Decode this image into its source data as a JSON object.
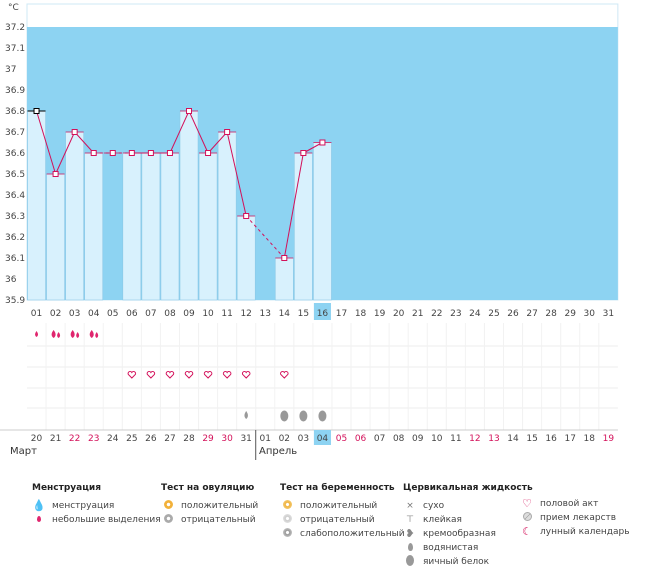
{
  "chart": {
    "unit": "°C",
    "y_ticks": [
      "37.2",
      "37.1",
      "37",
      "36.9",
      "36.8",
      "36.7",
      "36.6",
      "36.5",
      "36.4",
      "36.3",
      "36.2",
      "36.1",
      "36",
      "35.9"
    ],
    "cycle_days": [
      "01",
      "02",
      "03",
      "04",
      "05",
      "06",
      "07",
      "08",
      "09",
      "10",
      "11",
      "12",
      "13",
      "14",
      "15",
      "16",
      "17",
      "18",
      "19",
      "20",
      "21",
      "22",
      "23",
      "24",
      "25",
      "26",
      "27",
      "28",
      "29",
      "30",
      "31"
    ],
    "current_day": "16",
    "dates": [
      "20",
      "21",
      "22",
      "23",
      "24",
      "25",
      "26",
      "27",
      "28",
      "29",
      "30",
      "31",
      "01",
      "02",
      "03",
      "04",
      "05",
      "06",
      "07",
      "08",
      "09",
      "10",
      "11",
      "12",
      "13",
      "14",
      "15",
      "16",
      "17",
      "18",
      "19"
    ],
    "weekend_indices": [
      2,
      3,
      9,
      10,
      16,
      17,
      23,
      24,
      30
    ],
    "today_date_index": 15,
    "month_labels": [
      "Март",
      "Апрель"
    ],
    "colors": {
      "background": "#8dd3f2",
      "bar": "#d8f1fd",
      "bar_border": "#8cc8e6",
      "line": "#d3115a",
      "weekend": "#d3115a",
      "today_bg": "#8dd3f2"
    }
  },
  "chart_data": {
    "type": "line",
    "xlabel": "",
    "ylabel": "°C",
    "ylim": [
      35.9,
      37.2
    ],
    "x": [
      1,
      2,
      3,
      4,
      5,
      6,
      7,
      8,
      9,
      10,
      11,
      12,
      13,
      14,
      15,
      16
    ],
    "values": [
      36.8,
      36.5,
      36.7,
      36.6,
      36.6,
      36.6,
      36.6,
      36.6,
      36.8,
      36.6,
      36.7,
      36.3,
      null,
      36.1,
      36.6,
      36.65
    ],
    "bars_present": [
      1,
      2,
      3,
      4,
      6,
      7,
      8,
      9,
      10,
      11,
      12,
      14,
      15,
      16
    ]
  },
  "rows": {
    "menstruation": [
      {
        "day": 1,
        "type": "small"
      },
      {
        "day": 2,
        "type": "full"
      },
      {
        "day": 3,
        "type": "full"
      },
      {
        "day": 4,
        "type": "full"
      }
    ],
    "intercourse_days": [
      6,
      7,
      8,
      9,
      10,
      11,
      12,
      14
    ],
    "cervical_fluid": [
      {
        "day": 12,
        "type": "watery"
      },
      {
        "day": 14,
        "type": "eggwhite"
      },
      {
        "day": 15,
        "type": "eggwhite"
      },
      {
        "day": 16,
        "type": "eggwhite"
      }
    ]
  },
  "legend": {
    "menstruation": {
      "title": "Менструация",
      "items": [
        "менструация",
        "небольшие выделения"
      ]
    },
    "ovulation_test": {
      "title": "Тест на овуляцию",
      "items": [
        "положительный",
        "отрицательный"
      ]
    },
    "pregnancy_test": {
      "title": "Тест на беременность",
      "items": [
        "положительный",
        "отрицательный",
        "слабоположительный"
      ]
    },
    "cervical_fluid": {
      "title": "Цервикальная жидкость",
      "items": [
        "сухо",
        "клейкая",
        "кремообразная",
        "водянистая",
        "яичный белок"
      ]
    },
    "other": {
      "items": [
        "половой акт",
        "прием лекарств",
        "лунный календарь"
      ]
    }
  }
}
